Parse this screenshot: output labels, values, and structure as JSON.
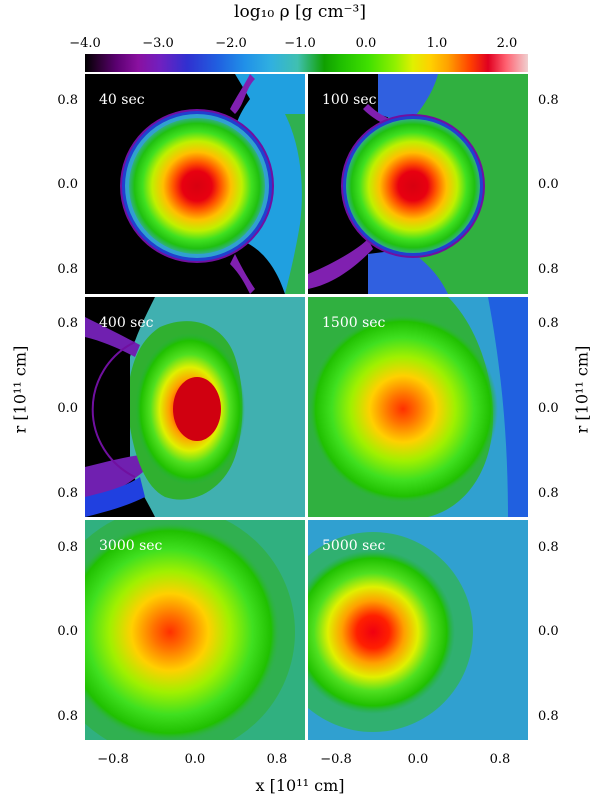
{
  "colorbar": {
    "title": "log₁₀ ρ [g cm⁻³]",
    "ticks": [
      "−4.0",
      "−3.0",
      "−2.0",
      "−1.0",
      "0.0",
      "1.0",
      "2.0"
    ]
  },
  "panels": [
    {
      "time": "40 sec"
    },
    {
      "time": "100 sec"
    },
    {
      "time": "400 sec"
    },
    {
      "time": "1500 sec"
    },
    {
      "time": "3000 sec"
    },
    {
      "time": "5000 sec"
    }
  ],
  "axes": {
    "ylabel": "r [10¹¹ cm]",
    "xlabel": "x [10¹¹ cm]",
    "yticks": [
      "0.8",
      "0.0",
      "0.8"
    ],
    "xticks": [
      "−0.8",
      "0.0",
      "0.8"
    ]
  }
}
